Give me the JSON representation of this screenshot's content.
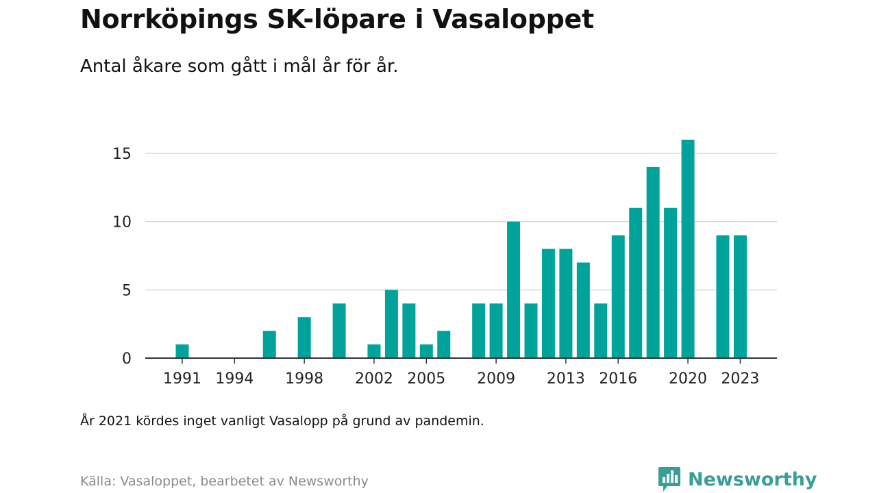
{
  "header": {
    "title": "Norrköpings SK-löpare i Vasaloppet",
    "subtitle": "Antal åkare som gått i mål år för år."
  },
  "footer": {
    "note": "År 2021 kördes inget vanligt Vasalopp på grund av pandemin.",
    "source": "Källa: Vasaloppet, bearbetet av Newsworthy",
    "brand": "Newsworthy"
  },
  "icons": {
    "logo": "newsworthy-logo-icon"
  },
  "colors": {
    "bar": "#00a39a",
    "grid": "#d9d9d9",
    "axis": "#333333",
    "brand": "#3a9e96"
  },
  "chart_data": {
    "type": "bar",
    "title": "Norrköpings SK-löpare i Vasaloppet",
    "subtitle": "Antal åkare som gått i mål år för år.",
    "xlabel": "",
    "ylabel": "",
    "x": [
      1991,
      1992,
      1993,
      1994,
      1995,
      1996,
      1997,
      1998,
      1999,
      2000,
      2001,
      2002,
      2003,
      2004,
      2005,
      2006,
      2007,
      2008,
      2009,
      2010,
      2011,
      2012,
      2013,
      2014,
      2015,
      2016,
      2017,
      2018,
      2019,
      2020,
      2021,
      2022,
      2023
    ],
    "values": [
      1,
      0,
      0,
      0,
      0,
      2,
      0,
      3,
      0,
      4,
      0,
      1,
      5,
      4,
      1,
      2,
      0,
      4,
      4,
      10,
      4,
      8,
      8,
      7,
      4,
      9,
      11,
      14,
      11,
      16,
      0,
      9,
      9
    ],
    "x_ticks": [
      "1991",
      "1994",
      "1998",
      "2002",
      "2005",
      "2009",
      "2013",
      "2016",
      "2020",
      "2023"
    ],
    "y_ticks": [
      "0",
      "5",
      "10",
      "15"
    ],
    "ylim": [
      0,
      16
    ],
    "grid": "horizontal",
    "legend": "none"
  }
}
